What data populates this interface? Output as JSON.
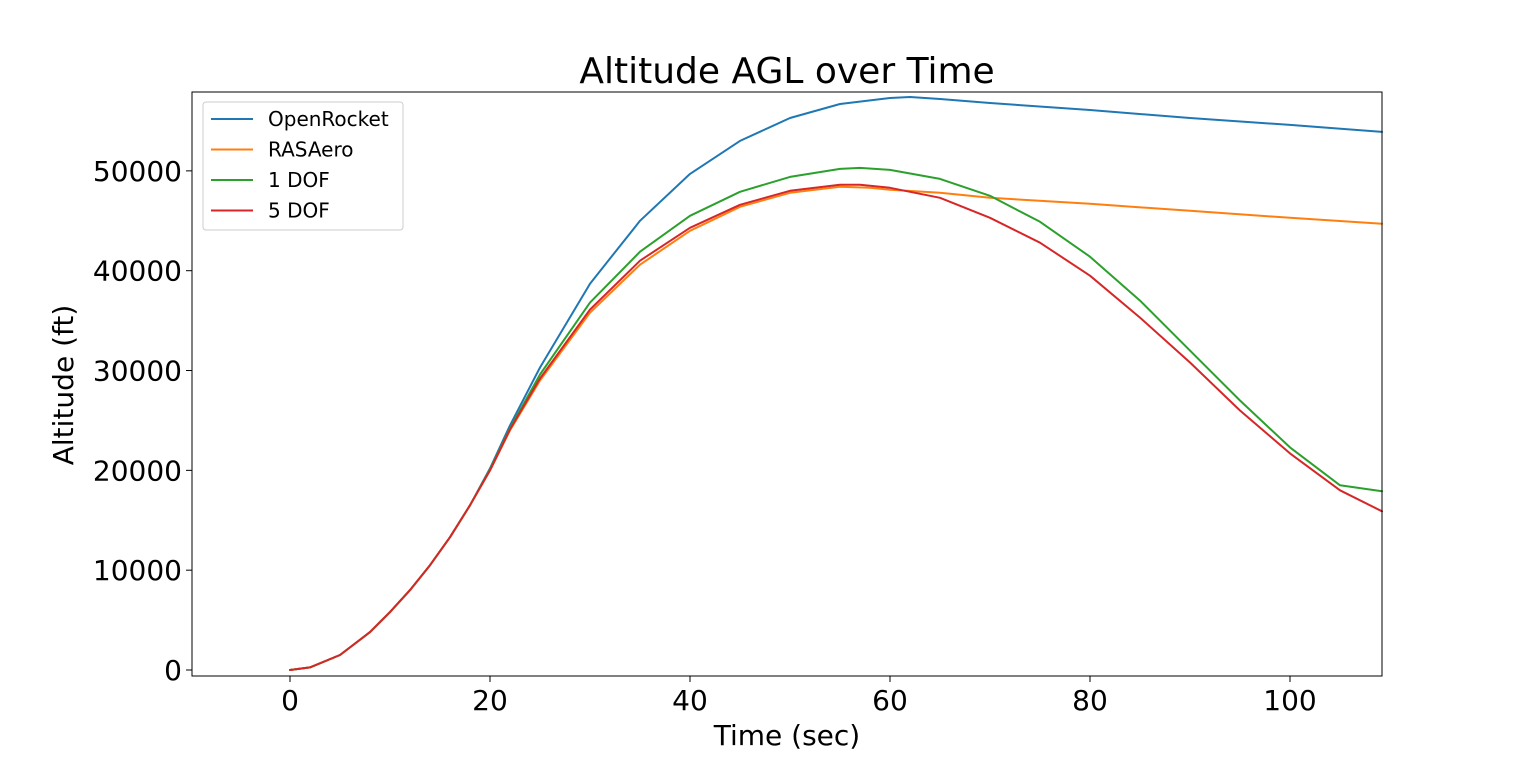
{
  "chart_data": {
    "type": "line",
    "title": "Altitude AGL over Time",
    "xlabel": "Time (sec)",
    "ylabel": "Altitude (ft)",
    "xlim": [
      -9.8,
      109.2
    ],
    "ylim": [
      -600,
      57900
    ],
    "xticks": [
      0,
      20,
      40,
      60,
      80,
      100
    ],
    "yticks": [
      0,
      10000,
      20000,
      30000,
      40000,
      50000
    ],
    "grid": false,
    "legend_position": "upper left",
    "series": [
      {
        "name": "OpenRocket",
        "color": "#1f77b4",
        "points": [
          [
            0,
            0
          ],
          [
            2,
            260
          ],
          [
            5,
            1500
          ],
          [
            8,
            3800
          ],
          [
            10,
            5800
          ],
          [
            12,
            8000
          ],
          [
            14,
            10500
          ],
          [
            16,
            13300
          ],
          [
            18,
            16500
          ],
          [
            20,
            20200
          ],
          [
            22,
            24500
          ],
          [
            25,
            30300
          ],
          [
            30,
            38700
          ],
          [
            35,
            45000
          ],
          [
            40,
            49700
          ],
          [
            45,
            53000
          ],
          [
            50,
            55300
          ],
          [
            55,
            56700
          ],
          [
            60,
            57300
          ],
          [
            62,
            57400
          ],
          [
            65,
            57200
          ],
          [
            70,
            56800
          ],
          [
            80,
            56100
          ],
          [
            90,
            55300
          ],
          [
            100,
            54600
          ],
          [
            109.2,
            53900
          ]
        ]
      },
      {
        "name": "RASAero",
        "color": "#ff7f0e",
        "points": [
          [
            0,
            0
          ],
          [
            2,
            260
          ],
          [
            5,
            1500
          ],
          [
            8,
            3800
          ],
          [
            10,
            5800
          ],
          [
            12,
            8000
          ],
          [
            14,
            10500
          ],
          [
            16,
            13300
          ],
          [
            18,
            16500
          ],
          [
            20,
            20000
          ],
          [
            22,
            24000
          ],
          [
            25,
            29000
          ],
          [
            30,
            35800
          ],
          [
            35,
            40600
          ],
          [
            40,
            44000
          ],
          [
            45,
            46400
          ],
          [
            50,
            47800
          ],
          [
            55,
            48400
          ],
          [
            58,
            48300
          ],
          [
            60,
            48100
          ],
          [
            65,
            47800
          ],
          [
            70,
            47300
          ],
          [
            80,
            46700
          ],
          [
            90,
            46000
          ],
          [
            100,
            45300
          ],
          [
            109.2,
            44700
          ]
        ]
      },
      {
        "name": "1 DOF",
        "color": "#2ca02c",
        "points": [
          [
            0,
            0
          ],
          [
            2,
            260
          ],
          [
            5,
            1500
          ],
          [
            8,
            3800
          ],
          [
            10,
            5800
          ],
          [
            12,
            8000
          ],
          [
            14,
            10500
          ],
          [
            16,
            13300
          ],
          [
            18,
            16500
          ],
          [
            20,
            20100
          ],
          [
            22,
            24200
          ],
          [
            25,
            29600
          ],
          [
            30,
            36800
          ],
          [
            35,
            41900
          ],
          [
            40,
            45500
          ],
          [
            45,
            47900
          ],
          [
            50,
            49400
          ],
          [
            55,
            50200
          ],
          [
            57,
            50300
          ],
          [
            60,
            50100
          ],
          [
            65,
            49200
          ],
          [
            70,
            47500
          ],
          [
            75,
            44900
          ],
          [
            80,
            41400
          ],
          [
            85,
            37000
          ],
          [
            90,
            32000
          ],
          [
            95,
            27000
          ],
          [
            100,
            22300
          ],
          [
            105,
            18500
          ],
          [
            109.2,
            17900
          ]
        ]
      },
      {
        "name": "5 DOF",
        "color": "#d62728",
        "points": [
          [
            0,
            0
          ],
          [
            2,
            260
          ],
          [
            5,
            1500
          ],
          [
            8,
            3800
          ],
          [
            10,
            5800
          ],
          [
            12,
            8000
          ],
          [
            14,
            10500
          ],
          [
            16,
            13300
          ],
          [
            18,
            16500
          ],
          [
            20,
            20000
          ],
          [
            22,
            24100
          ],
          [
            25,
            29200
          ],
          [
            30,
            36100
          ],
          [
            35,
            41000
          ],
          [
            40,
            44300
          ],
          [
            45,
            46600
          ],
          [
            50,
            48000
          ],
          [
            55,
            48600
          ],
          [
            57,
            48600
          ],
          [
            60,
            48300
          ],
          [
            65,
            47300
          ],
          [
            70,
            45300
          ],
          [
            75,
            42800
          ],
          [
            80,
            39500
          ],
          [
            85,
            35300
          ],
          [
            90,
            30800
          ],
          [
            95,
            26000
          ],
          [
            100,
            21700
          ],
          [
            105,
            18000
          ],
          [
            109.2,
            15900
          ]
        ]
      }
    ]
  }
}
